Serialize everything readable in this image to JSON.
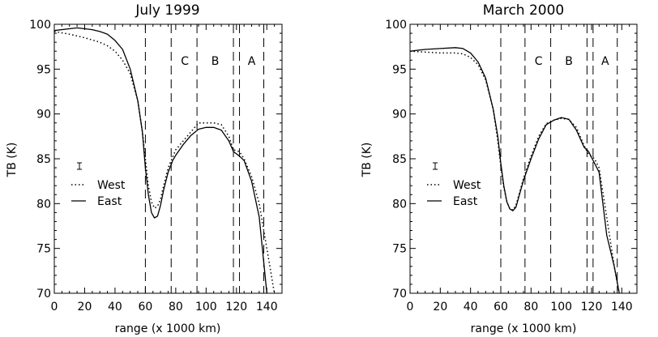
{
  "chart_data": [
    {
      "type": "line",
      "title": "July 1999",
      "xlabel": "range (x 1000 km)",
      "ylabel": "TB (K)",
      "xlim": [
        0,
        150
      ],
      "ylim": [
        70,
        100
      ],
      "xticks": [
        "0",
        "20",
        "40",
        "60",
        "80",
        "100",
        "120",
        "140"
      ],
      "yticks": [
        "70",
        "75",
        "80",
        "85",
        "90",
        "95",
        "100"
      ],
      "vlines": [
        60,
        77,
        94,
        118,
        122,
        138
      ],
      "regions": [
        {
          "label": "C",
          "x": 86
        },
        {
          "label": "B",
          "x": 106
        },
        {
          "label": "A",
          "x": 130
        }
      ],
      "series": [
        {
          "name": "West",
          "style": "dotted",
          "x": [
            0,
            10,
            20,
            30,
            35,
            40,
            45,
            50,
            55,
            58,
            60,
            62,
            64,
            66,
            68,
            70,
            72,
            75,
            80,
            85,
            90,
            95,
            100,
            105,
            110,
            115,
            118,
            122,
            125,
            130,
            135,
            140,
            145
          ],
          "y": [
            99.2,
            98.9,
            98.5,
            98,
            97.6,
            97,
            96,
            94.5,
            91.5,
            88,
            85,
            82,
            80.2,
            79.5,
            79.7,
            80.5,
            82,
            84,
            86,
            87,
            88,
            89,
            89,
            89,
            88.8,
            87.5,
            86,
            85.8,
            85,
            83,
            80,
            75,
            70
          ]
        },
        {
          "name": "East",
          "style": "solid",
          "x": [
            0,
            10,
            15,
            20,
            25,
            30,
            35,
            40,
            45,
            50,
            55,
            58,
            60,
            62,
            64,
            66,
            68,
            70,
            72,
            75,
            78,
            80,
            85,
            90,
            95,
            100,
            105,
            110,
            115,
            118,
            122,
            125,
            130,
            135,
            140
          ],
          "y": [
            99.3,
            99.5,
            99.6,
            99.5,
            99.4,
            99.2,
            98.9,
            98.2,
            97.2,
            95,
            91.5,
            88,
            84,
            81,
            79,
            78.4,
            78.6,
            79.8,
            81.5,
            83.5,
            84.8,
            85.4,
            86.6,
            87.6,
            88.3,
            88.5,
            88.5,
            88.2,
            87,
            85.8,
            85.3,
            84.8,
            82.5,
            78.5,
            70
          ]
        }
      ],
      "legend": {
        "position": "left-middle",
        "entries": [
          "West",
          "East"
        ]
      }
    },
    {
      "type": "line",
      "title": "March 2000",
      "xlabel": "range (x 1000 km)",
      "ylabel": "TB (K)",
      "xlim": [
        0,
        150
      ],
      "ylim": [
        70,
        100
      ],
      "xticks": [
        "0",
        "20",
        "40",
        "60",
        "80",
        "100",
        "120",
        "140"
      ],
      "yticks": [
        "70",
        "75",
        "80",
        "85",
        "90",
        "95",
        "100"
      ],
      "vlines": [
        60,
        76,
        93,
        117,
        121,
        137
      ],
      "regions": [
        {
          "label": "C",
          "x": 85
        },
        {
          "label": "B",
          "x": 105
        },
        {
          "label": "A",
          "x": 129
        }
      ],
      "series": [
        {
          "name": "West",
          "style": "dotted",
          "x": [
            0,
            10,
            20,
            30,
            35,
            40,
            45,
            50,
            55,
            58,
            60,
            62,
            64,
            66,
            68,
            70,
            72,
            75,
            80,
            85,
            90,
            95,
            100,
            105,
            110,
            115,
            118,
            122,
            125,
            130,
            135,
            140
          ],
          "y": [
            97,
            96.9,
            96.8,
            96.8,
            96.7,
            96.3,
            95.5,
            93.8,
            90.5,
            87,
            84.2,
            81.8,
            80.2,
            79.4,
            79.3,
            79.8,
            81,
            82.8,
            85.3,
            87.5,
            88.9,
            89.3,
            89.5,
            89.4,
            88.5,
            86.5,
            85.5,
            85,
            84,
            78.5,
            73,
            68.5
          ]
        },
        {
          "name": "East",
          "style": "solid",
          "x": [
            0,
            10,
            20,
            30,
            35,
            40,
            45,
            50,
            55,
            58,
            60,
            62,
            64,
            66,
            68,
            70,
            72,
            75,
            80,
            85,
            90,
            95,
            100,
            105,
            110,
            115,
            118,
            122,
            125,
            130,
            135,
            140
          ],
          "y": [
            97,
            97.2,
            97.3,
            97.4,
            97.3,
            96.8,
            95.8,
            94,
            90.5,
            87.5,
            84.5,
            82,
            80.2,
            79.4,
            79.2,
            79.6,
            80.8,
            82.6,
            85,
            87.2,
            88.8,
            89.3,
            89.6,
            89.4,
            88.2,
            86.3,
            85.8,
            84.5,
            83.5,
            76.5,
            73,
            68.5
          ]
        }
      ],
      "legend": {
        "position": "left-middle",
        "entries": [
          "West",
          "East"
        ]
      }
    }
  ]
}
